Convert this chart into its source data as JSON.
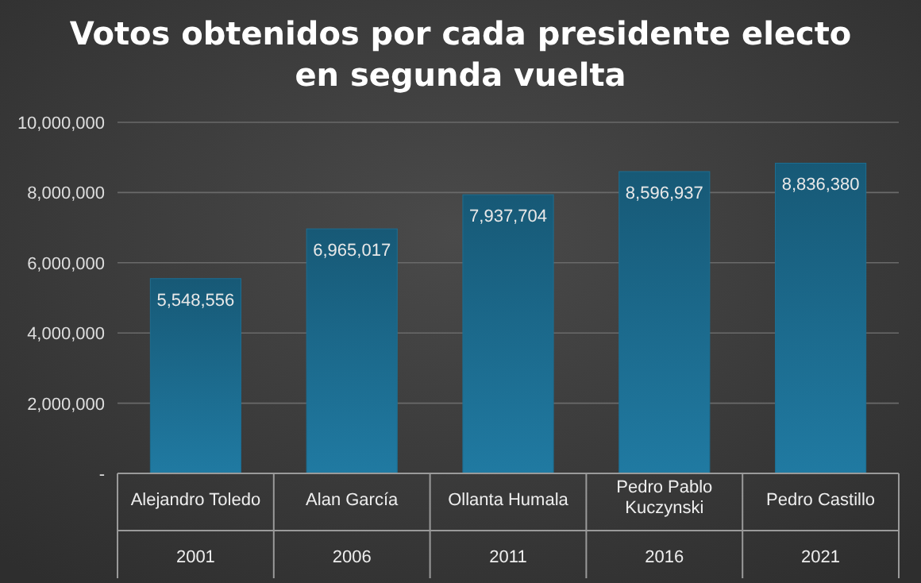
{
  "chart_data": {
    "type": "bar",
    "title": "Votos obtenidos por cada presidente electo en segunda vuelta",
    "categories": [
      "Alejandro Toledo",
      "Alan García",
      "Ollanta Humala",
      "Pedro Pablo Kuczynski",
      "Pedro Castillo"
    ],
    "values": [
      5548556,
      6965017,
      7937704,
      8596937,
      8836380
    ],
    "color": "#1d6e92",
    "ylim": [
      0,
      10000000
    ],
    "yticks": [
      {
        "value": 0,
        "label": "-"
      },
      {
        "value": 2000000,
        "label": "2,000,000"
      },
      {
        "value": 4000000,
        "label": "4,000,000"
      },
      {
        "value": 6000000,
        "label": "6,000,000"
      },
      {
        "value": 8000000,
        "label": "8,000,000"
      },
      {
        "value": 10000000,
        "label": "10,000,000"
      }
    ],
    "grid": "y",
    "value_labels": [
      "5,548,556",
      "6,965,017",
      "7,937,704",
      "8,596,937",
      "8,836,380"
    ],
    "annotations": [
      "2001",
      "2006",
      "2011",
      "2016",
      "2021"
    ]
  }
}
